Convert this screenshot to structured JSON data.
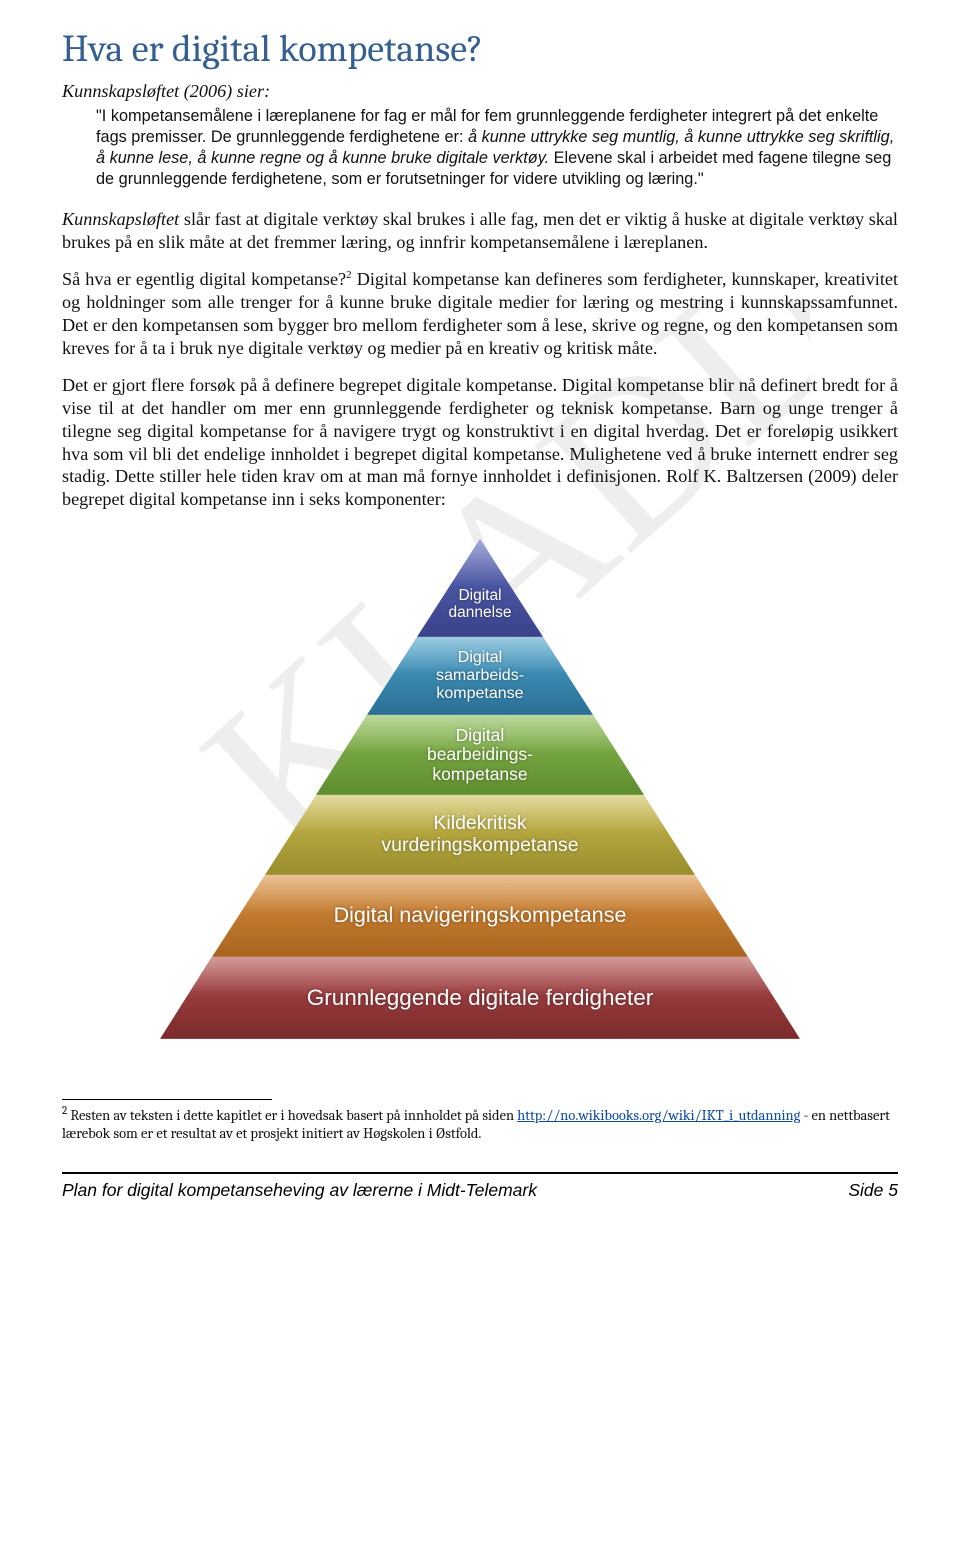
{
  "watermark": {
    "text": "KLADD",
    "color": "#eeeeee",
    "fontsize": 220
  },
  "title": {
    "text": "Hva er digital kompetanse?",
    "color": "#355f91",
    "fontsize": 38
  },
  "subtitle_italic": "Kunnskapsløftet (2006) sier:",
  "quote": "\"I kompetansemålene i læreplanene for fag er mål for fem grunnleggende ferdigheter integrert på det enkelte fags premisser. De grunnleggende ferdighetene er: å kunne uttrykke seg muntlig, å kunne uttrykke seg skriftlig, å kunne lese, å kunne regne og å kunne bruke digitale verktøy. Elevene skal i arbeidet med fagene tilegne seg de grunnleggende ferdighetene, som er forutsetninger for videre utvikling og læring.\"",
  "para1_lead": "Kunnskapsløftet",
  "para1_rest": " slår fast at digitale verktøy skal brukes i alle fag, men det er viktig å huske at digitale verktøy skal brukes på en slik måte at det fremmer læring, og innfrir kompetanse­målene i læreplanen.",
  "para2_a": "Så hva er egentlig digital kompetanse?",
  "para2_b": " Digital kompetanse kan defineres som ferdigheter, kunnskaper, kreativitet og holdninger som alle trenger for å kunne bruke digitale medier for læring og mestring i kunnskapssamfunnet. Det er den kompetansen som bygger bro mellom ferdigheter som å lese, skrive og regne, og den kompetansen som kreves for å ta i bruk nye digitale verktøy og medier på en kreativ og kritisk måte.",
  "para3": "Det er gjort flere forsøk på å definere begrepet digitale kompetanse. Digital kompetanse blir nå definert bredt for å vise til at det handler om mer enn grunnleggende ferdigheter og teknisk kompetanse. Barn og unge trenger å tilegne seg digital kompetanse for å navigere trygt og konstruktivt i en digital hverdag. Det er foreløpig usikkert hva som vil bli det endelige innholdet i begrepet digital kompetanse. Mulighetene ved å bruke internett endrer seg stadig. Dette stiller hele tiden krav om at man må fornye innholdet i definisjonen. Rolf K. Baltzersen (2009) deler begrepet digital kompetanse inn i seks komponenter:",
  "pyramid": {
    "type": "pyramid",
    "label_font": "Arial",
    "label_color": "#ffffff",
    "layers": [
      {
        "id": "layer-1",
        "label": "Grunnleggende digitale ferdigheter",
        "fontsize": 22.5,
        "grad_top": "#b0484a",
        "grad_bot": "#7a2b2c"
      },
      {
        "id": "layer-2",
        "label": "Digital navigeringskompetanse",
        "fontsize": 21.5,
        "grad_top": "#d88d3b",
        "grad_bot": "#a9641f"
      },
      {
        "id": "layer-3",
        "label": "Kildekritisk\nvurderingskompetanse",
        "fontsize": 19.5,
        "grad_top": "#c9bb4d",
        "grad_bot": "#9a8d2d"
      },
      {
        "id": "layer-4",
        "label": "Digital\nbearbeidings-\nkompetanse",
        "fontsize": 17.5,
        "grad_top": "#88b84e",
        "grad_bot": "#5e8d2f"
      },
      {
        "id": "layer-5",
        "label": "Digital\nsamarbeids-\nkompetanse",
        "fontsize": 16,
        "grad_top": "#4aa1c9",
        "grad_bot": "#2a6f95"
      },
      {
        "id": "layer-6",
        "label": "Digital\ndannelse",
        "fontsize": 15.5,
        "grad_top": "#5966b7",
        "grad_bot": "#39428a"
      }
    ]
  },
  "footnote": {
    "marker": "2",
    "text_a": " Resten av teksten i dette kapitlet er i hovedsak basert på innholdet på siden ",
    "link_text": "http://no.wikibooks.org/wiki/IKT_i_utdanning",
    "text_b": " - en nettbasert lærebok som er et resultat av et prosjekt initiert av Høgskolen i Østfold."
  },
  "footer": {
    "left": "Plan for digital kompetanseheving av lærerne i Midt-Telemark",
    "right": "Side 5"
  }
}
